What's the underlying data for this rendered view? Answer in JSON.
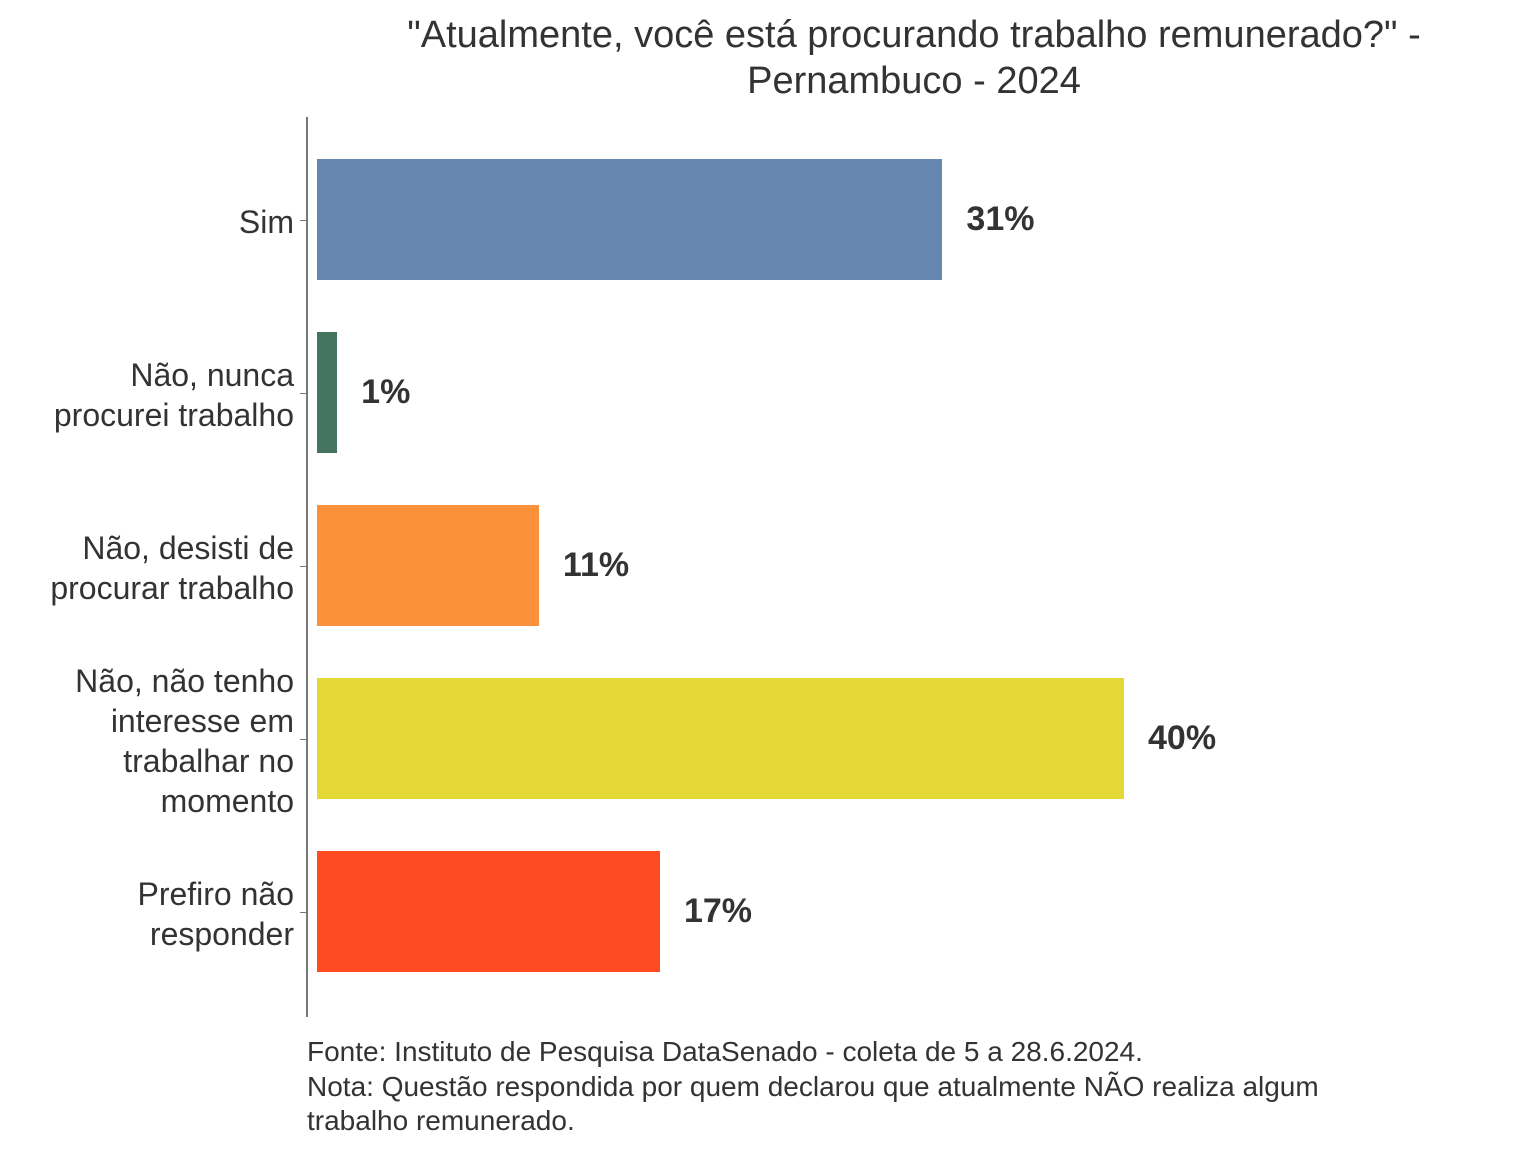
{
  "chart_data": {
    "type": "bar",
    "orientation": "horizontal",
    "title_line1": "\"Atualmente, você está procurando trabalho remunerado?\" -",
    "title_line2": "Pernambuco - 2024",
    "categories": [
      "Sim",
      "Não, nunca procurei trabalho",
      "Não, desisti de procurar trabalho",
      "Não, não tenho interesse em trabalhar no momento",
      "Prefiro não responder"
    ],
    "category_lines": [
      [
        "Sim"
      ],
      [
        "Não, nunca",
        "procurei trabalho"
      ],
      [
        "Não, desisti de",
        "procurar trabalho"
      ],
      [
        "Não, não tenho",
        "interesse em",
        "trabalhar no",
        "momento"
      ],
      [
        "Prefiro não",
        "responder"
      ]
    ],
    "values": [
      31,
      1,
      11,
      40,
      17
    ],
    "labels": [
      "31%",
      "1%",
      "11%",
      "40%",
      "17%"
    ],
    "colors": [
      "#6688B0",
      "#44735F",
      "#FC913C",
      "#E4D836",
      "#FF4B21"
    ],
    "xlim": [
      0,
      40
    ],
    "grid": false,
    "legend": "none",
    "xlabel": "",
    "ylabel": ""
  },
  "footer": {
    "source": "Fonte: Instituto de Pesquisa DataSenado - coleta de 5 a 28.6.2024.",
    "note_line1": "Nota: Questão respondida por quem declarou que atualmente NÃO realiza algum",
    "note_line2": "trabalho remunerado."
  }
}
